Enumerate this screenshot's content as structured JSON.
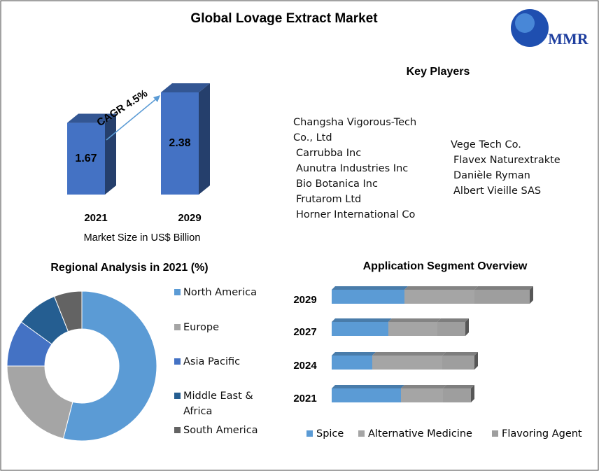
{
  "title": "Global Lovage Extract Market",
  "logo": "MMR",
  "key_players": {
    "title": "Key Players",
    "column_1": [
      "Changsha Vigorous-Tech Co., Ltd",
      "Carrubba Inc",
      "Aunutra Industries Inc",
      "Bio Botanica Inc",
      "Frutarom Ltd",
      "Horner International Co"
    ],
    "column_2": [
      "Vege Tech Co.",
      "Flavex Naturextrakte",
      "Danièle Ryman",
      "Albert Vieille SAS"
    ]
  },
  "chart_data": [
    {
      "type": "bar",
      "categories": [
        "2021",
        "2029"
      ],
      "values": [
        1.67,
        2.38
      ],
      "color": "#4472c4",
      "annotation": "CAGR 4.5%",
      "xlabel": "Market Size in US$ Billion"
    },
    {
      "type": "pie",
      "title": "Regional Analysis in 2021 (%)",
      "donut": true,
      "categories": [
        "North America",
        "Europe",
        "Asia Pacific",
        "Middle East & Africa",
        "South America"
      ],
      "values": [
        54,
        21,
        10,
        9,
        6
      ],
      "colors": [
        "#5b9bd5",
        "#a5a5a5",
        "#4472c4",
        "#255e91",
        "#636363"
      ]
    },
    {
      "type": "barh",
      "stacked": true,
      "title": "Application Segment Overview",
      "categories": [
        "2029",
        "2027",
        "2024",
        "2021"
      ],
      "series": [
        {
          "name": "Spice",
          "color": "#5b9bd5",
          "values": [
            1.04,
            0.81,
            0.58,
            0.99
          ]
        },
        {
          "name": "Alternative Medicine",
          "color": "#a5a5a5",
          "values": [
            1.0,
            0.7,
            1.0,
            0.6
          ]
        },
        {
          "name": "Flavoring Agent",
          "color": "#9e9e9e",
          "values": [
            0.79,
            0.4,
            0.46,
            0.4
          ]
        }
      ]
    }
  ]
}
